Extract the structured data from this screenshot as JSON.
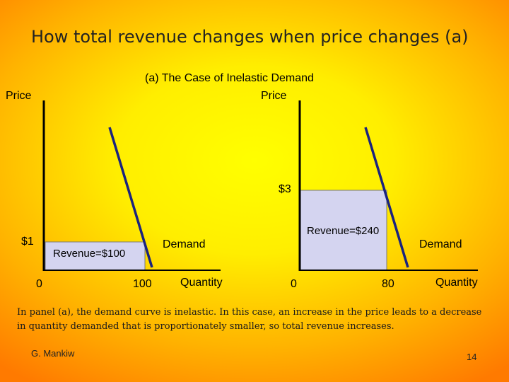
{
  "slide": {
    "title": "How total revenue changes when price changes (a)",
    "subtitle": "(a) The Case of Inelastic Demand",
    "caption": "In panel (a), the demand curve is inelastic. In this case, an increase in the price leads to a decrease in quantity demanded that is proportionately smaller, so total revenue increases.",
    "author": "G. Mankiw",
    "page_number": "14"
  },
  "left_panel": {
    "y_label": "Price",
    "x_label": "Quantity",
    "origin": "0",
    "price_label": "$1",
    "quantity_label": "100",
    "revenue_label": "Revenue=$100",
    "curve_label": "Demand"
  },
  "right_panel": {
    "y_label": "Price",
    "x_label": "Quantity",
    "origin": "0",
    "price_label": "$3",
    "quantity_label": "80",
    "revenue_label": "Revenue=$240",
    "curve_label": "Demand"
  },
  "colors": {
    "revenue_fill": "#d4d4f0",
    "demand_curve": "#1a237e",
    "axis": "#000000"
  }
}
